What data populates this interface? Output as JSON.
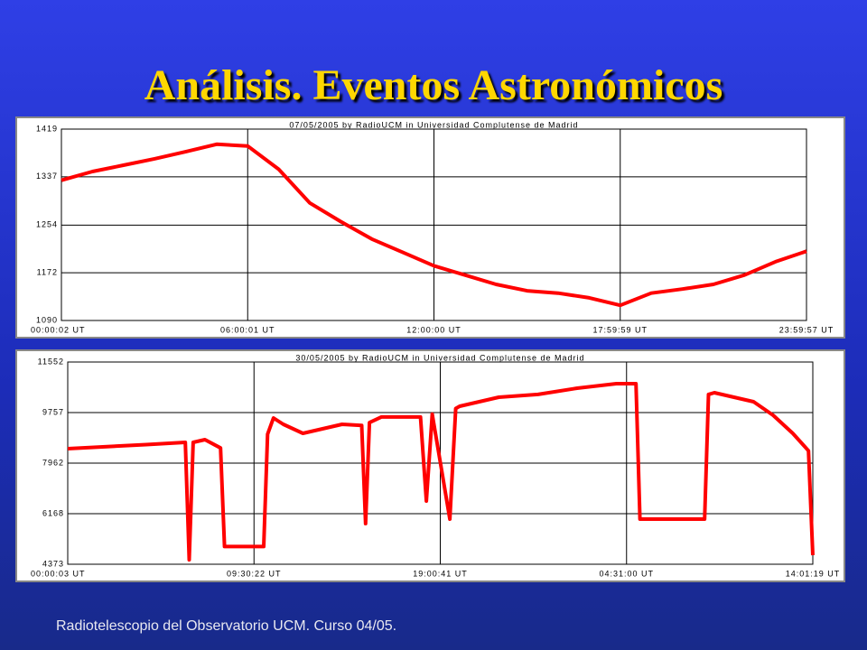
{
  "title": "Análisis. Eventos Astronómicos",
  "footer": "Radiotelescopio del Observatorio UCM. Curso 04/05.",
  "chart_data": [
    {
      "type": "line",
      "title": "07/05/2005  by  RadioUCM  in  Universidad Complutense de Madrid",
      "x": [
        0.0006,
        1,
        2,
        3,
        4,
        5,
        6,
        7,
        8,
        9,
        10,
        11,
        12,
        13,
        14,
        15,
        16,
        17,
        18,
        19,
        20,
        21,
        22,
        23,
        23.9992
      ],
      "series": [
        {
          "name": "07/05/2005",
          "color": "#ff0000",
          "values": [
            1331,
            1346,
            1357,
            1368,
            1380,
            1393,
            1390,
            1350,
            1292,
            1260,
            1230,
            1207,
            1184,
            1168,
            1152,
            1141,
            1137,
            1129,
            1116,
            1137,
            1144,
            1152,
            1168,
            1191,
            1209
          ]
        }
      ],
      "xlim": [
        0.0006,
        23.9992
      ],
      "xticks": [
        {
          "value": 0.0006,
          "label": "00:00:02 UT"
        },
        {
          "value": 6.0003,
          "label": "06:00:01 UT"
        },
        {
          "value": 12.0,
          "label": "12:00:00 UT"
        },
        {
          "value": 17.9997,
          "label": "17:59:59 UT"
        },
        {
          "value": 23.9992,
          "label": "23:59:57 UT"
        }
      ],
      "ylim": [
        1090,
        1419
      ],
      "yticks": [
        1090,
        1172,
        1254,
        1337,
        1419
      ],
      "grid": true
    },
    {
      "type": "line",
      "title": "30/05/2005  by  RadioUCM  in  Universidad Complutense de Madrid",
      "x": [
        0.0008,
        2,
        4,
        6,
        6.2,
        6.4,
        7,
        7.8,
        8,
        10,
        10.2,
        10.5,
        11,
        12,
        14,
        15,
        15.2,
        15.4,
        16,
        18,
        18.3,
        18.6,
        19.5,
        19.8,
        20,
        22,
        24,
        26,
        28,
        29,
        29.2,
        32.5,
        32.7,
        33,
        35,
        36,
        37,
        37.8,
        38.0219
      ],
      "series": [
        {
          "name": "30/05/2005",
          "color": "#ff0000",
          "values": [
            8475,
            8550,
            8620,
            8700,
            4530,
            8700,
            8796,
            8500,
            5000,
            5000,
            8990,
            9565,
            9340,
            9020,
            9340,
            9300,
            5815,
            9400,
            9600,
            9600,
            6616,
            9700,
            5975,
            9900,
            9980,
            10302,
            10400,
            10623,
            10783,
            10783,
            5975,
            5975,
            10400,
            10462,
            10142,
            9662,
            9020,
            8400,
            4694
          ]
        }
      ],
      "xlim": [
        0.0008,
        38.0219
      ],
      "xticks": [
        {
          "value": 0.0008,
          "label": "00:00:03 UT"
        },
        {
          "value": 9.5061,
          "label": "09:30:22 UT"
        },
        {
          "value": 19.0114,
          "label": "19:00:41 UT"
        },
        {
          "value": 28.5167,
          "label": "04:31:00 UT"
        },
        {
          "value": 38.0219,
          "label": "14:01:19 UT"
        }
      ],
      "ylim": [
        4373,
        11552
      ],
      "yticks": [
        4373,
        6168,
        7962,
        9757,
        11552
      ],
      "grid": true
    }
  ]
}
